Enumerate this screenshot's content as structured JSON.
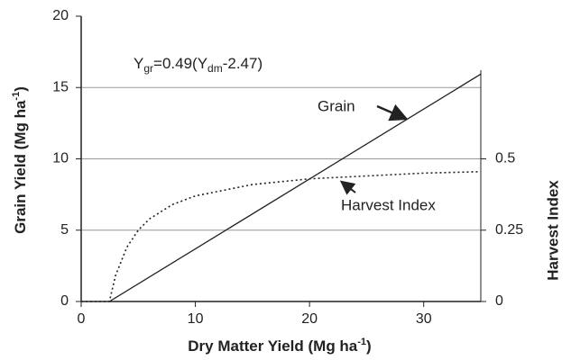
{
  "chart_data": {
    "type": "line",
    "xlabel": [
      "Dry Matter Yield (Mg ha",
      "-1",
      ")"
    ],
    "ylabel": [
      "Grain Yield (Mg ha",
      "-1",
      ")"
    ],
    "y2label": "Harvest Index",
    "equation": [
      "Y",
      "gr",
      "=0.49(Y",
      "dm",
      "-2.47)"
    ],
    "annotations": [
      "Grain",
      "Harvest Index"
    ],
    "xlim": [
      0,
      35
    ],
    "xticks": [
      0,
      10,
      20,
      30
    ],
    "ylim": [
      0,
      20
    ],
    "yticks": [
      0,
      5,
      10,
      15,
      20
    ],
    "y2lim": [
      0,
      1
    ],
    "y2ticks": [
      0,
      0.25,
      0.5
    ],
    "grid": true,
    "series": [
      {
        "name": "Grain",
        "color": "#222222",
        "dash": false,
        "x": [
          2.47,
          35
        ],
        "values": [
          0,
          15.94
        ]
      },
      {
        "name": "Harvest Index",
        "color": "#222222",
        "dash": true,
        "axis": "y2",
        "x": [
          0,
          2.47,
          3,
          4,
          5,
          6,
          8,
          10,
          15,
          20,
          25,
          30,
          35
        ],
        "values": [
          0,
          0,
          0.09,
          0.19,
          0.25,
          0.29,
          0.34,
          0.37,
          0.41,
          0.43,
          0.44,
          0.45,
          0.455
        ]
      }
    ]
  }
}
